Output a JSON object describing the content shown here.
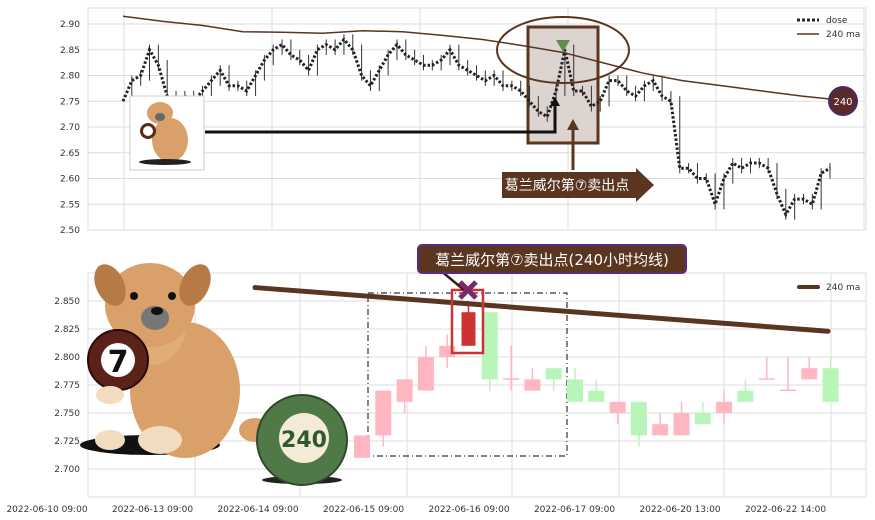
{
  "chart_data": [
    {
      "type": "line",
      "ylim": [
        2.5,
        2.9
      ],
      "yticks": [
        "2.50",
        "2.55",
        "2.60",
        "2.65",
        "2.70",
        "2.75",
        "2.80",
        "2.85",
        "2.90"
      ],
      "grid": true,
      "legend_placement": "top-right",
      "series": [
        {
          "name": "dose",
          "style": "dotted",
          "color": "#222222",
          "values": [
            2.75,
            2.79,
            2.8,
            2.85,
            2.82,
            2.76,
            2.75,
            2.76,
            2.75,
            2.77,
            2.79,
            2.81,
            2.78,
            2.78,
            2.77,
            2.8,
            2.83,
            2.85,
            2.86,
            2.84,
            2.83,
            2.81,
            2.85,
            2.86,
            2.85,
            2.87,
            2.85,
            2.8,
            2.78,
            2.81,
            2.84,
            2.86,
            2.84,
            2.83,
            2.82,
            2.82,
            2.83,
            2.85,
            2.82,
            2.81,
            2.8,
            2.79,
            2.8,
            2.78,
            2.78,
            2.77,
            2.75,
            2.73,
            2.72,
            2.77,
            2.85,
            2.77,
            2.77,
            2.74,
            2.75,
            2.79,
            2.79,
            2.77,
            2.76,
            2.78,
            2.79,
            2.76,
            2.75,
            2.62,
            2.62,
            2.6,
            2.6,
            2.55,
            2.6,
            2.63,
            2.62,
            2.63,
            2.63,
            2.62,
            2.57,
            2.53,
            2.56,
            2.56,
            2.55,
            2.61,
            2.62
          ]
        },
        {
          "name": "240 ma",
          "style": "solid",
          "color": "#5a3520",
          "values": [
            2.915,
            2.905,
            2.897,
            2.885,
            2.884,
            2.882,
            2.887,
            2.885,
            2.878,
            2.87,
            2.858,
            2.845,
            2.825,
            2.805,
            2.79,
            2.78,
            2.77,
            2.76,
            2.752
          ]
        }
      ],
      "annotations": {
        "sell_label": "葛兰威尔第⑦卖出点",
        "badge": "240"
      }
    },
    {
      "type": "candlestick",
      "ylim": [
        2.685,
        2.875
      ],
      "yticks": [
        "2.700",
        "2.725",
        "2.750",
        "2.775",
        "2.800",
        "2.825",
        "2.850"
      ],
      "xticks": [
        "2022-06-10 09:00",
        "2022-06-13 09:00",
        "2022-06-14 09:00",
        "2022-06-15 09:00",
        "2022-06-16 09:00",
        "2022-06-17 09:00",
        "2022-06-20 13:00",
        "2022-06-22 14:00"
      ],
      "grid": true,
      "legend_placement": "top-right",
      "up_color": "#ffb6c1",
      "down_color": "#b9f5b9",
      "highlight_color": "#cc3333",
      "candles": [
        {
          "o": 2.71,
          "c": 2.73,
          "h": 2.73,
          "l": 2.71
        },
        {
          "o": 2.73,
          "c": 2.77,
          "h": 2.77,
          "l": 2.72
        },
        {
          "o": 2.76,
          "c": 2.78,
          "h": 2.78,
          "l": 2.75
        },
        {
          "o": 2.77,
          "c": 2.8,
          "h": 2.81,
          "l": 2.77
        },
        {
          "o": 2.8,
          "c": 2.81,
          "h": 2.82,
          "l": 2.79
        },
        {
          "o": 2.81,
          "c": 2.84,
          "h": 2.85,
          "l": 2.81,
          "highlight": true
        },
        {
          "o": 2.84,
          "c": 2.78,
          "h": 2.84,
          "l": 2.77
        },
        {
          "o": 2.78,
          "c": 2.781,
          "h": 2.81,
          "l": 2.77
        },
        {
          "o": 2.77,
          "c": 2.78,
          "h": 2.79,
          "l": 2.77
        },
        {
          "o": 2.79,
          "c": 2.78,
          "h": 2.79,
          "l": 2.77
        },
        {
          "o": 2.78,
          "c": 2.76,
          "h": 2.79,
          "l": 2.76
        },
        {
          "o": 2.77,
          "c": 2.76,
          "h": 2.78,
          "l": 2.76
        },
        {
          "o": 2.75,
          "c": 2.76,
          "h": 2.76,
          "l": 2.74
        },
        {
          "o": 2.76,
          "c": 2.73,
          "h": 2.76,
          "l": 2.72
        },
        {
          "o": 2.73,
          "c": 2.74,
          "h": 2.75,
          "l": 2.73
        },
        {
          "o": 2.73,
          "c": 2.75,
          "h": 2.76,
          "l": 2.73
        },
        {
          "o": 2.75,
          "c": 2.74,
          "h": 2.76,
          "l": 2.74
        },
        {
          "o": 2.75,
          "c": 2.76,
          "h": 2.77,
          "l": 2.74
        },
        {
          "o": 2.77,
          "c": 2.76,
          "h": 2.78,
          "l": 2.76
        },
        {
          "o": 2.78,
          "c": 2.781,
          "h": 2.8,
          "l": 2.78
        },
        {
          "o": 2.77,
          "c": 2.771,
          "h": 2.8,
          "l": 2.77
        },
        {
          "o": 2.78,
          "c": 2.79,
          "h": 2.8,
          "l": 2.78
        },
        {
          "o": 2.79,
          "c": 2.76,
          "h": 2.8,
          "l": 2.76
        }
      ],
      "ma": {
        "name": "240 ma",
        "color": "#5a3520",
        "start": 2.862,
        "end": 2.823
      },
      "annotations": {
        "sell_label": "葛兰威尔第⑦卖出点(240小时均线)",
        "ball_7": "7",
        "ball_240": "240"
      }
    }
  ]
}
